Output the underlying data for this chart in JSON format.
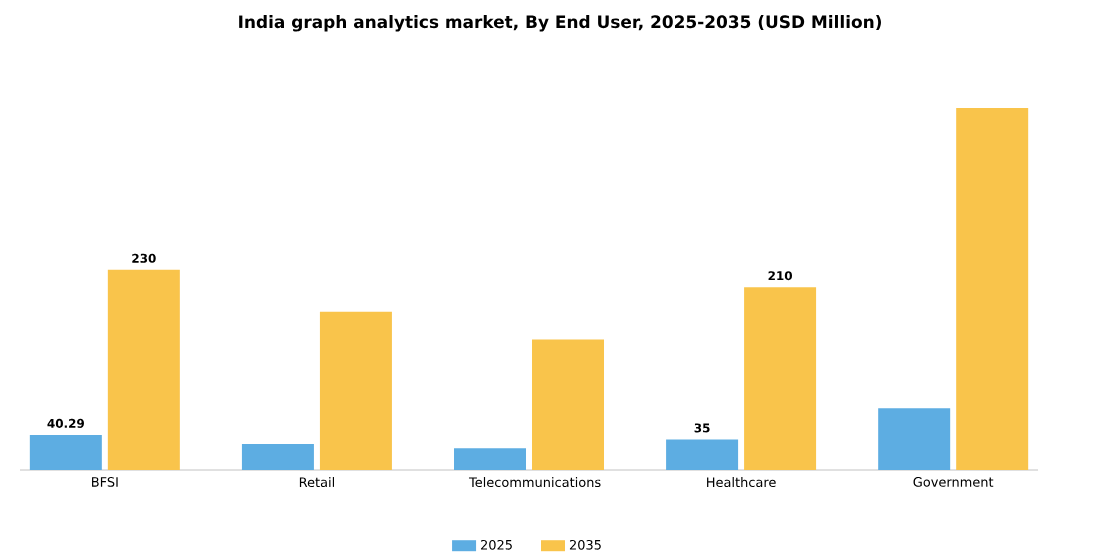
{
  "chart_data": {
    "type": "bar",
    "title": "India graph analytics market, By End User, 2025-2035 (USD Million)",
    "categories": [
      "BFSI",
      "Retail",
      "Telecommunications",
      "Healthcare",
      "Government"
    ],
    "series": [
      {
        "name": "2025",
        "color": "#5dade2",
        "values": [
          40.29,
          30,
          25,
          35,
          71
        ],
        "value_labels": [
          "40.29",
          null,
          null,
          "35",
          null
        ]
      },
      {
        "name": "2035",
        "color": "#f9c44b",
        "values": [
          230,
          182,
          150,
          210,
          416
        ],
        "value_labels": [
          "230",
          null,
          null,
          "210",
          null
        ]
      }
    ],
    "tick_labels": "x",
    "legend": "bottom",
    "grid": false
  }
}
